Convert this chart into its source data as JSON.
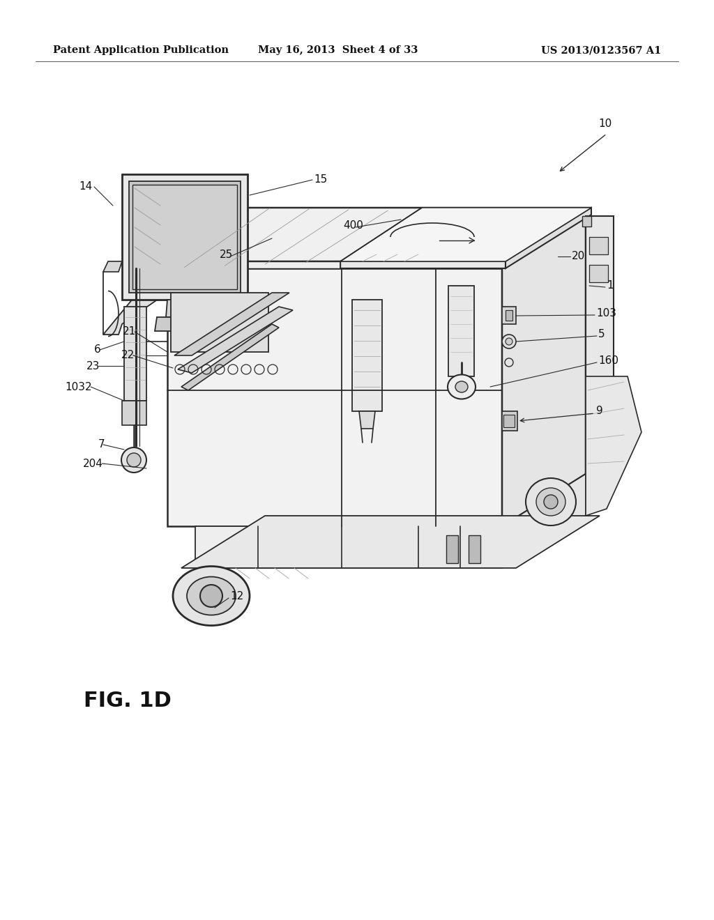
{
  "background_color": "#ffffff",
  "header_left": "Patent Application Publication",
  "header_mid": "May 16, 2013  Sheet 4 of 33",
  "header_right": "US 2013/0123567 A1",
  "fig_label": "FIG. 1D",
  "line_color": "#2a2a2a",
  "light_gray": "#f0f0f0",
  "mid_gray": "#d8d8d8",
  "dark_gray": "#c0c0c0",
  "label_fontsize": 11,
  "header_fontsize": 10,
  "fig_label_fontsize": 22
}
